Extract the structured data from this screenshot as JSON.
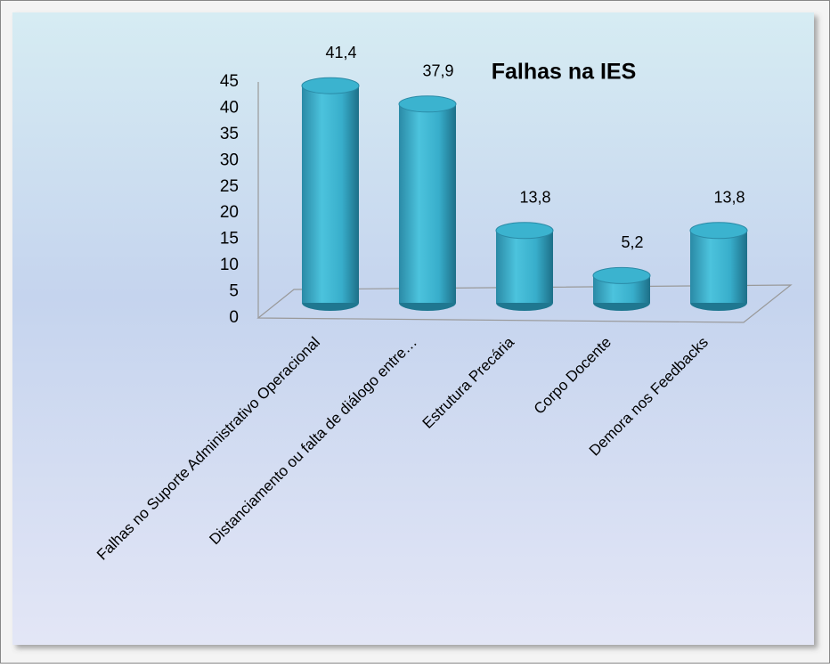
{
  "chart_data": {
    "type": "bar",
    "title": "Falhas na IES",
    "categories": [
      "Falhas no Suporte Administrativo Operacional",
      "Distanciamento ou falta de diálogo entre…",
      "Estrutura Precária",
      "Corpo Docente",
      "Demora nos Feedbacks"
    ],
    "values": [
      41.4,
      37.9,
      13.8,
      5.2,
      13.8
    ],
    "value_labels": [
      "41,4",
      "37,9",
      "13,8",
      "5,2",
      "13,8"
    ],
    "color": "#3bb3cf",
    "ylim": [
      0,
      45
    ],
    "yticks": [
      0,
      5,
      10,
      15,
      20,
      25,
      30,
      35,
      40,
      45
    ]
  }
}
